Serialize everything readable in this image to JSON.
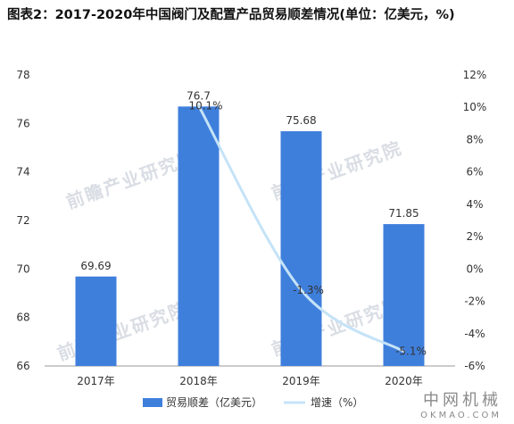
{
  "title": "图表2：2017-2020年中国阀门及配置产品贸易顺差情况(单位：亿美元，%)",
  "watermark": "前瞻产业研究院",
  "brand": {
    "cn": "中网机械",
    "en": "OKMAO.COM"
  },
  "colors": {
    "bar": "#3f7fdc",
    "line": "#c5e3f7",
    "axis": "#999999",
    "text": "#333333"
  },
  "chart_data": {
    "type": "bar",
    "categories": [
      "2017年",
      "2018年",
      "2019年",
      "2020年"
    ],
    "series": [
      {
        "name": "贸易顺差（亿美元）",
        "type": "bar",
        "axis": "left",
        "values": [
          69.69,
          76.7,
          75.68,
          71.85
        ],
        "labels": [
          "69.69",
          "76.7",
          "75.68",
          "71.85"
        ]
      },
      {
        "name": "增速（%）",
        "type": "line",
        "axis": "right",
        "values": [
          null,
          10.1,
          -1.3,
          -5.1
        ],
        "labels": [
          "",
          "10.1%",
          "-1.3%",
          "-5.1%"
        ]
      }
    ],
    "ylim_left": [
      66,
      78
    ],
    "yticks_left": [
      "66",
      "68",
      "70",
      "72",
      "74",
      "76",
      "78"
    ],
    "ylim_right": [
      -6,
      12
    ],
    "yticks_right": [
      "-6%",
      "-4%",
      "-2%",
      "0%",
      "2%",
      "4%",
      "6%",
      "8%",
      "10%",
      "12%"
    ],
    "legend_position": "bottom"
  }
}
